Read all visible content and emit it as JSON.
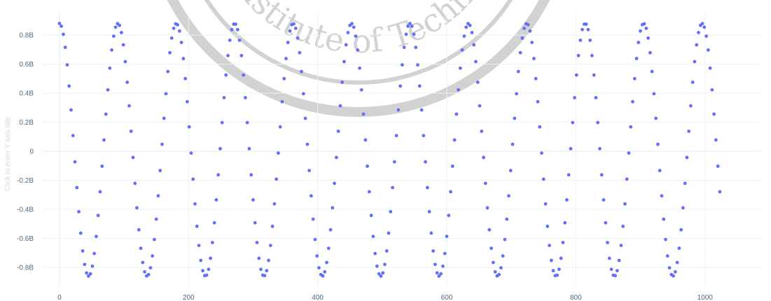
{
  "chart_data": {
    "type": "scatter",
    "series": [
      {
        "marker_color": "#636efa",
        "points": {
          "x_start": 0,
          "x_end": 1023,
          "x_step": 3,
          "y_amplitude": 870000000,
          "y_offset": 10000000,
          "y_period": 90.5
        }
      }
    ],
    "xlabel": "",
    "ylabel_placeholder": "Click to enter Y axis title",
    "xlim": [
      -27,
      1086
    ],
    "ylim": [
      -0.935,
      0.955
    ],
    "x_ticks": [
      {
        "value": 0,
        "label": "0"
      },
      {
        "value": 200,
        "label": "200"
      },
      {
        "value": 400,
        "label": "400"
      },
      {
        "value": 600,
        "label": "600"
      },
      {
        "value": 800,
        "label": "800"
      },
      {
        "value": 1000,
        "label": "1000"
      }
    ],
    "y_ticks": [
      {
        "value": 0.8,
        "label": "0.8B"
      },
      {
        "value": 0.6,
        "label": "0.6B"
      },
      {
        "value": 0.4,
        "label": "0.4B"
      },
      {
        "value": 0.2,
        "label": "0.2B"
      },
      {
        "value": 0,
        "label": "0"
      },
      {
        "value": -0.2,
        "label": "-0.2B"
      },
      {
        "value": -0.4,
        "label": "-0.4B"
      },
      {
        "value": -0.6,
        "label": "-0.6B"
      },
      {
        "value": -0.8,
        "label": "-0.8B"
      }
    ],
    "grid": true,
    "legend": "none"
  },
  "watermark": {
    "text": "s Institute of Technolo",
    "color": "#d2d2d2"
  }
}
